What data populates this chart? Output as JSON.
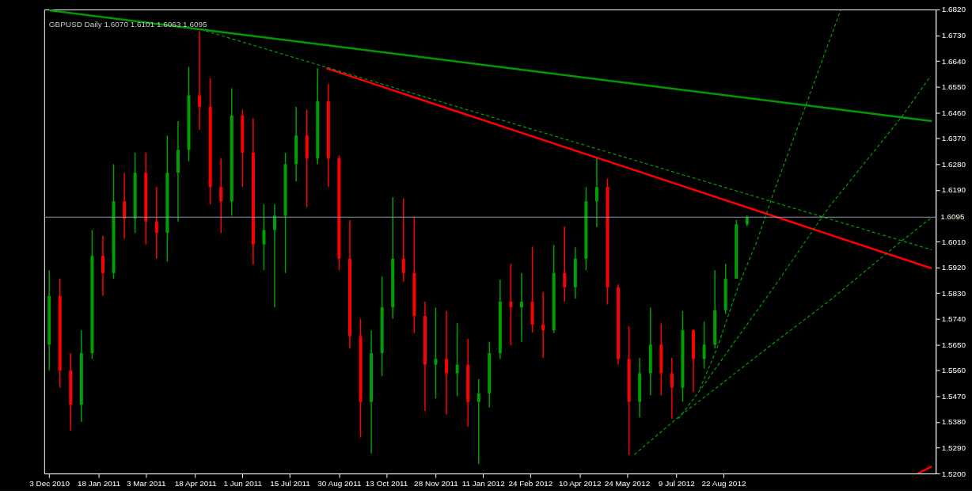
{
  "chart_data": {
    "type": "candlestick",
    "title": "GBPUSD Daily  1.6070 1.6101 1.6063 1.6095",
    "x": [
      "2010-12-03",
      "2010-12-13",
      "2010-12-23",
      "2011-01-02",
      "2011-01-12",
      "2011-01-22",
      "2011-02-01",
      "2011-02-11",
      "2011-02-21",
      "2011-03-03",
      "2011-03-13",
      "2011-03-23",
      "2011-04-02",
      "2011-04-12",
      "2011-04-22",
      "2011-05-02",
      "2011-05-12",
      "2011-05-22",
      "2011-06-01",
      "2011-06-11",
      "2011-06-21",
      "2011-07-01",
      "2011-07-11",
      "2011-07-21",
      "2011-07-31",
      "2011-08-10",
      "2011-08-20",
      "2011-08-30",
      "2011-09-09",
      "2011-09-19",
      "2011-09-29",
      "2011-10-09",
      "2011-10-19",
      "2011-10-29",
      "2011-11-08",
      "2011-11-18",
      "2011-11-28",
      "2011-12-08",
      "2011-12-18",
      "2011-12-28",
      "2012-01-07",
      "2012-01-17",
      "2012-01-27",
      "2012-02-06",
      "2012-02-16",
      "2012-02-26",
      "2012-03-07",
      "2012-03-17",
      "2012-03-27",
      "2012-04-06",
      "2012-04-16",
      "2012-04-26",
      "2012-05-06",
      "2012-05-16",
      "2012-05-26",
      "2012-06-05",
      "2012-06-15",
      "2012-06-25",
      "2012-07-05",
      "2012-07-15",
      "2012-07-25",
      "2012-08-04",
      "2012-08-14",
      "2012-08-24",
      "2012-09-03",
      "2012-09-13"
    ],
    "ohlc": [
      [
        1.565,
        1.591,
        1.556,
        1.582
      ],
      [
        1.582,
        1.588,
        1.55,
        1.556
      ],
      [
        1.556,
        1.562,
        1.535,
        1.544
      ],
      [
        1.544,
        1.57,
        1.538,
        1.562
      ],
      [
        1.562,
        1.605,
        1.56,
        1.596
      ],
      [
        1.596,
        1.603,
        1.582,
        1.59
      ],
      [
        1.59,
        1.628,
        1.588,
        1.615
      ],
      [
        1.615,
        1.625,
        1.602,
        1.609
      ],
      [
        1.609,
        1.632,
        1.604,
        1.625
      ],
      [
        1.625,
        1.632,
        1.6,
        1.608
      ],
      [
        1.608,
        1.62,
        1.595,
        1.604
      ],
      [
        1.604,
        1.638,
        1.594,
        1.625
      ],
      [
        1.625,
        1.643,
        1.608,
        1.633
      ],
      [
        1.633,
        1.662,
        1.629,
        1.652
      ],
      [
        1.652,
        1.6745,
        1.64,
        1.648
      ],
      [
        1.648,
        1.658,
        1.614,
        1.62
      ],
      [
        1.62,
        1.63,
        1.604,
        1.615
      ],
      [
        1.615,
        1.6545,
        1.61,
        1.645
      ],
      [
        1.645,
        1.647,
        1.62,
        1.632
      ],
      [
        1.632,
        1.644,
        1.593,
        1.6
      ],
      [
        1.6,
        1.614,
        1.591,
        1.605
      ],
      [
        1.605,
        1.614,
        1.578,
        1.61
      ],
      [
        1.61,
        1.632,
        1.59,
        1.628
      ],
      [
        1.628,
        1.648,
        1.622,
        1.638
      ],
      [
        1.638,
        1.647,
        1.613,
        1.63
      ],
      [
        1.63,
        1.6615,
        1.628,
        1.65
      ],
      [
        1.65,
        1.656,
        1.62,
        1.63
      ],
      [
        1.63,
        1.631,
        1.591,
        1.595
      ],
      [
        1.595,
        1.6085,
        1.5637,
        1.568
      ],
      [
        1.568,
        1.574,
        1.5326,
        1.545
      ],
      [
        1.545,
        1.57,
        1.527,
        1.562
      ],
      [
        1.562,
        1.5888,
        1.554,
        1.578
      ],
      [
        1.578,
        1.6165,
        1.574,
        1.595
      ],
      [
        1.595,
        1.616,
        1.587,
        1.59
      ],
      [
        1.59,
        1.6096,
        1.569,
        1.575
      ],
      [
        1.575,
        1.58,
        1.5418,
        1.558
      ],
      [
        1.558,
        1.5779,
        1.5462,
        1.56
      ],
      [
        1.56,
        1.5768,
        1.5407,
        1.555
      ],
      [
        1.555,
        1.5725,
        1.547,
        1.558
      ],
      [
        1.558,
        1.567,
        1.5364,
        1.545
      ],
      [
        1.545,
        1.553,
        1.5233,
        1.548
      ],
      [
        1.548,
        1.566,
        1.543,
        1.562
      ],
      [
        1.562,
        1.5877,
        1.56,
        1.58
      ],
      [
        1.58,
        1.5932,
        1.5648,
        1.578
      ],
      [
        1.578,
        1.59,
        1.566,
        1.58
      ],
      [
        1.58,
        1.5992,
        1.5692,
        1.572
      ],
      [
        1.572,
        1.5834,
        1.5604,
        1.57
      ],
      [
        1.57,
        1.5998,
        1.569,
        1.59
      ],
      [
        1.59,
        1.6063,
        1.58,
        1.585
      ],
      [
        1.585,
        1.599,
        1.581,
        1.595
      ],
      [
        1.595,
        1.62,
        1.591,
        1.615
      ],
      [
        1.615,
        1.63,
        1.606,
        1.62
      ],
      [
        1.62,
        1.623,
        1.579,
        1.585
      ],
      [
        1.585,
        1.586,
        1.558,
        1.56
      ],
      [
        1.56,
        1.5713,
        1.5265,
        1.545
      ],
      [
        1.545,
        1.5604,
        1.5396,
        1.555
      ],
      [
        1.555,
        1.5779,
        1.5473,
        1.565
      ],
      [
        1.565,
        1.5724,
        1.5473,
        1.555
      ],
      [
        1.555,
        1.5604,
        1.5391,
        1.55
      ],
      [
        1.55,
        1.5768,
        1.5451,
        1.57
      ],
      [
        1.57,
        1.5703,
        1.5484,
        1.56
      ],
      [
        1.56,
        1.573,
        1.5566,
        1.565
      ],
      [
        1.565,
        1.591,
        1.5637,
        1.577
      ],
      [
        1.577,
        1.5932,
        1.5757,
        1.588
      ],
      [
        1.588,
        1.6085,
        1.588,
        1.607
      ],
      [
        1.607,
        1.6101,
        1.6063,
        1.6095
      ]
    ],
    "colors": [
      "#00a000",
      "#ff0000",
      "#ff0000",
      "#00a000",
      "#00a000",
      "#ff0000",
      "#00a000",
      "#ff0000",
      "#00a000",
      "#ff0000",
      "#ff0000",
      "#00a000",
      "#00a000",
      "#00a000",
      "#ff0000",
      "#ff0000",
      "#ff0000",
      "#00a000",
      "#ff0000",
      "#ff0000",
      "#00a000",
      "#00a000",
      "#00a000",
      "#00a000",
      "#ff0000",
      "#00a000",
      "#ff0000",
      "#ff0000",
      "#ff0000",
      "#ff0000",
      "#00a000",
      "#00a000",
      "#00a000",
      "#ff0000",
      "#ff0000",
      "#ff0000",
      "#00a000",
      "#ff0000",
      "#00a000",
      "#ff0000",
      "#00a000",
      "#00a000",
      "#00a000",
      "#ff0000",
      "#00a000",
      "#ff0000",
      "#ff0000",
      "#00a000",
      "#ff0000",
      "#00a000",
      "#00a000",
      "#00a000",
      "#ff0000",
      "#ff0000",
      "#ff0000",
      "#00a000",
      "#00a000",
      "#ff0000",
      "#ff0000",
      "#00a000",
      "#ff0000",
      "#00a000",
      "#00a000",
      "#00a000",
      "#00a000",
      "#00a000"
    ],
    "series": [
      {
        "type": "line",
        "color": "#009900",
        "line_style": "solid",
        "x": [
          "2010-12-03",
          "2013-03-04"
        ],
        "values": [
          1.6817,
          1.643
        ]
      },
      {
        "type": "line",
        "color": "#ff0000",
        "line_style": "solid",
        "x": [
          "2011-08-18",
          "2013-03-04"
        ],
        "values": [
          1.6615,
          1.5916
        ]
      },
      {
        "type": "line",
        "color": "#ff0000",
        "line_style": "solid",
        "x": [
          "2013-02-19",
          "2013-03-04"
        ],
        "values": [
          1.52,
          1.5225
        ]
      },
      {
        "type": "line",
        "color": "#00a000",
        "line_style": "dashed",
        "x": [
          "2011-04-28",
          "2013-03-04"
        ],
        "values": [
          1.6745,
          1.5981
        ]
      },
      {
        "type": "line",
        "color": "#00a000",
        "line_style": "dashed",
        "x": [
          "2012-07-31",
          "2012-08-16",
          "2012-09-05",
          "2012-09-22",
          "2012-10-09",
          "2012-11-06",
          "2012-12-09"
        ],
        "values": [
          1.5495,
          1.5637,
          1.5856,
          1.6009,
          1.6194,
          1.6478,
          1.6817
        ]
      },
      {
        "type": "line",
        "color": "#00a000",
        "line_style": "dashed",
        "x": [
          "2012-07-11",
          "2012-08-01",
          "2012-08-28",
          "2012-10-09",
          "2012-11-28",
          "2013-02-03",
          "2013-03-03"
        ],
        "values": [
          1.5391,
          1.5495,
          1.5637,
          1.5856,
          1.6129,
          1.644,
          1.6588
        ]
      },
      {
        "type": "line",
        "color": "#00a000",
        "line_style": "dashed",
        "x": [
          "2012-05-31",
          "2012-07-11",
          "2012-08-14",
          "2012-10-09",
          "2012-11-28",
          "2013-02-03",
          "2013-03-03"
        ],
        "values": [
          1.5266,
          1.5397,
          1.5495,
          1.5659,
          1.5801,
          1.6009,
          1.6091
        ]
      }
    ],
    "ref_lines": [
      {
        "axis": "y",
        "value": 1.6095,
        "label": "1.6095",
        "color": "#8a9bb0"
      }
    ],
    "xlim": [
      "2010-12-02",
      "2013-03-04"
    ],
    "xticks": [
      {
        "value": "2010-12-03",
        "label": "3 Dec 2010"
      },
      {
        "value": "2011-01-18",
        "label": "18 Jan 2011"
      },
      {
        "value": "2011-03-03",
        "label": "3 Mar 2011"
      },
      {
        "value": "2011-04-18",
        "label": "18 Apr 2011"
      },
      {
        "value": "2011-06-01",
        "label": "1 Jun 2011"
      },
      {
        "value": "2011-07-15",
        "label": "15 Jul 2011"
      },
      {
        "value": "2011-08-30",
        "label": "30 Aug 2011"
      },
      {
        "value": "2011-10-13",
        "label": "13 Oct 2011"
      },
      {
        "value": "2011-11-28",
        "label": "28 Nov 2011"
      },
      {
        "value": "2012-01-11",
        "label": "11 Jan 2012"
      },
      {
        "value": "2012-02-24",
        "label": "24 Feb 2012"
      },
      {
        "value": "2012-04-10",
        "label": "10 Apr 2012"
      },
      {
        "value": "2012-05-24",
        "label": "24 May 2012"
      },
      {
        "value": "2012-07-09",
        "label": "9 Jul 2012"
      },
      {
        "value": "2012-08-22",
        "label": "22 Aug 2012"
      }
    ],
    "ylim": [
      1.52,
      1.682
    ],
    "yticks": [
      {
        "value": 1.52,
        "label": "1.5200"
      },
      {
        "value": 1.529,
        "label": "1.5290"
      },
      {
        "value": 1.538,
        "label": "1.5380"
      },
      {
        "value": 1.547,
        "label": "1.5470"
      },
      {
        "value": 1.556,
        "label": "1.5560"
      },
      {
        "value": 1.565,
        "label": "1.5650"
      },
      {
        "value": 1.574,
        "label": "1.5740"
      },
      {
        "value": 1.583,
        "label": "1.5830"
      },
      {
        "value": 1.592,
        "label": "1.5920"
      },
      {
        "value": 1.601,
        "label": "1.6010"
      },
      {
        "value": 1.619,
        "label": "1.6190"
      },
      {
        "value": 1.628,
        "label": "1.6280"
      },
      {
        "value": 1.637,
        "label": "1.6370"
      },
      {
        "value": 1.646,
        "label": "1.6460"
      },
      {
        "value": 1.655,
        "label": "1.6550"
      },
      {
        "value": 1.664,
        "label": "1.6640"
      },
      {
        "value": 1.673,
        "label": "1.6730"
      },
      {
        "value": 1.682,
        "label": "1.6820"
      }
    ],
    "grid": false
  }
}
